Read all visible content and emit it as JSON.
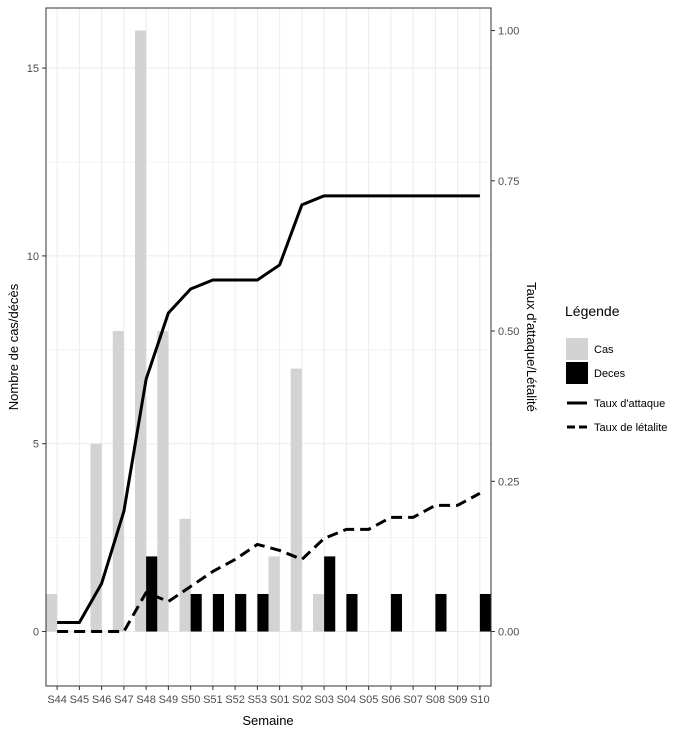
{
  "chart_data": {
    "type": "bar",
    "categories": [
      "S44",
      "S45",
      "S46",
      "S47",
      "S48",
      "S49",
      "S50",
      "S51",
      "S52",
      "S53",
      "S01",
      "S02",
      "S03",
      "S04",
      "S05",
      "S06",
      "S07",
      "S08",
      "S09",
      "S10"
    ],
    "series": [
      {
        "name": "Cas",
        "kind": "bar",
        "axis": "left",
        "color": "#d3d3d3",
        "values": [
          1,
          0,
          5,
          8,
          16,
          8,
          3,
          0,
          0,
          0,
          2,
          7,
          1,
          0,
          0,
          0,
          0,
          0,
          0,
          0
        ]
      },
      {
        "name": "Deces",
        "kind": "bar",
        "axis": "left",
        "color": "#000000",
        "values": [
          0,
          0,
          0,
          0,
          2,
          0,
          1,
          1,
          1,
          1,
          0,
          0,
          2,
          1,
          0,
          1,
          0,
          1,
          0,
          1
        ]
      },
      {
        "name": "Taux d'attaque",
        "kind": "line",
        "axis": "right",
        "dash": "solid",
        "values": [
          0.015,
          0.015,
          0.08,
          0.2,
          0.42,
          0.53,
          0.57,
          0.585,
          0.585,
          0.585,
          0.61,
          0.71,
          0.725,
          0.725,
          0.725,
          0.725,
          0.725,
          0.725,
          0.725,
          0.725
        ]
      },
      {
        "name": "Taux de létalite",
        "kind": "line",
        "axis": "right",
        "dash": "dashed",
        "values": [
          0,
          0,
          0,
          0,
          0.065,
          0.05,
          0.075,
          0.1,
          0.12,
          0.145,
          0.135,
          0.12,
          0.155,
          0.17,
          0.17,
          0.19,
          0.19,
          0.21,
          0.21,
          0.23
        ]
      }
    ],
    "xlabel": "Semaine",
    "ylabel": "Nombre de cas/décès",
    "y2label": "Taux d'attaque/Létalité",
    "ylim": [
      -1.45,
      16.6
    ],
    "y2lim": [
      -0.0906,
      1.0375
    ],
    "yticks": [
      "0",
      "5",
      "10",
      "15"
    ],
    "y2ticks": [
      "0.00",
      "0.25",
      "0.50",
      "0.75",
      "1.00"
    ],
    "grid": true,
    "legend": {
      "title": "Légende",
      "position": "right",
      "items": [
        {
          "label": "Cas",
          "type": "fill",
          "color": "#d3d3d3"
        },
        {
          "label": "Deces",
          "type": "fill",
          "color": "#000000"
        },
        {
          "label": "Taux d'attaque",
          "type": "line",
          "dash": "solid"
        },
        {
          "label": "Taux de létalite",
          "type": "line",
          "dash": "dashed"
        }
      ]
    }
  }
}
